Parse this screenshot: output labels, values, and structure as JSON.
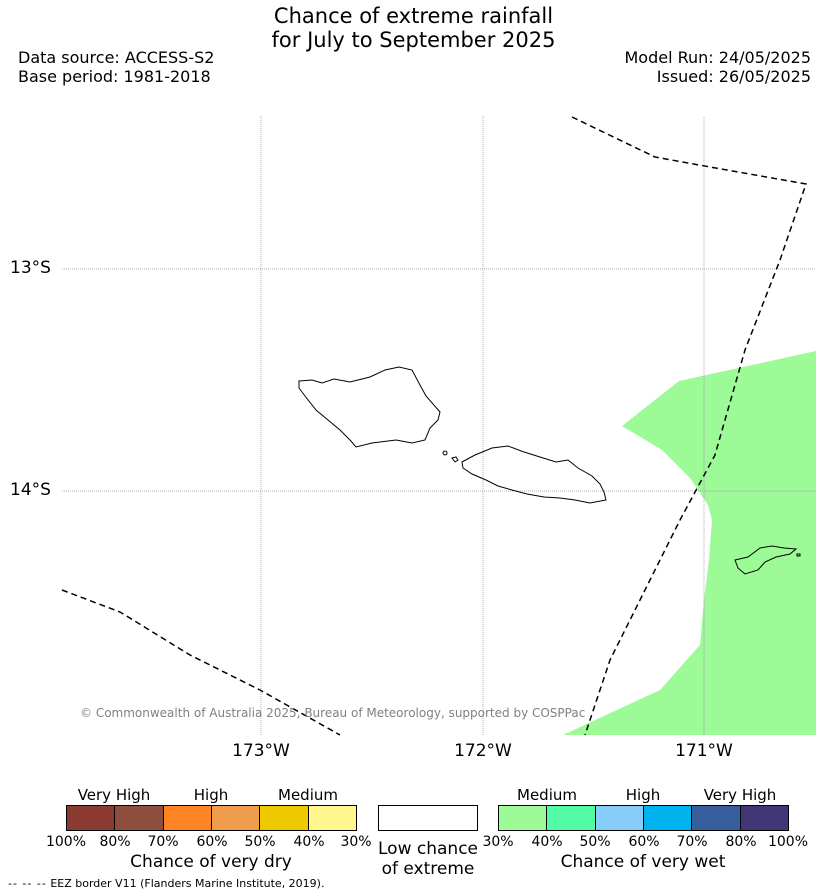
{
  "title_line1": "Chance of extreme rainfall",
  "title_line2": "for July to September 2025",
  "header": {
    "data_source": "Data source: ACCESS-S2",
    "base_period": "Base period: 1981-2018",
    "model_run": "Model Run: 24/05/2025",
    "issued": "Issued: 26/05/2025"
  },
  "axes": {
    "lat_labels": [
      "13°S",
      "14°S"
    ],
    "lon_labels": [
      "173°W",
      "172°W",
      "171°W"
    ]
  },
  "copyright": "© Commonwealth of Australia 2025, Bureau of Meteorology, supported by COSPPac",
  "legend": {
    "dry": {
      "categories": [
        "Very High",
        "High",
        "Medium"
      ],
      "ticks": [
        "100%",
        "80%",
        "70%",
        "60%",
        "50%",
        "40%",
        "30%"
      ],
      "colors": [
        "#8b3a32",
        "#8e4e3e",
        "#ff8426",
        "#ef9c4c",
        "#efc900",
        "#fff68d"
      ],
      "title": "Chance of very dry"
    },
    "low": {
      "line1": "Low chance",
      "line2": "of extreme",
      "color": "#ffffff"
    },
    "wet": {
      "categories": [
        "Medium",
        "High",
        "Very High"
      ],
      "ticks": [
        "30%",
        "40%",
        "50%",
        "60%",
        "70%",
        "80%",
        "100%"
      ],
      "colors": [
        "#9cfb96",
        "#53fba6",
        "#87cdfa",
        "#00b3ec",
        "#365e9c",
        "#413776"
      ],
      "title": "Chance of very wet"
    }
  },
  "footer": {
    "dashes": "-- -- --",
    "text": "EEZ border V11 (Flanders Marine Institute, 2019)."
  },
  "map_colors": {
    "medium_wet_fill": "#9cfb96",
    "gridline": "#999999",
    "coastline": "#000000",
    "eez_border": "#000000"
  }
}
